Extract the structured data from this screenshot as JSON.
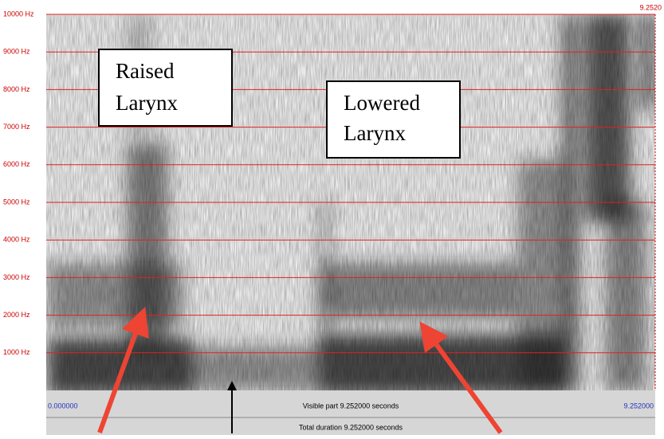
{
  "frequency_labels": [
    "10000 Hz",
    "9000 Hz",
    "8000 Hz",
    "7000 Hz",
    "6000 Hz",
    "5000 Hz",
    "4000 Hz",
    "3000 Hz",
    "2000 Hz",
    "1000 Hz"
  ],
  "top_right_time": "9.2520",
  "annotations": [
    {
      "lines": [
        "Raised",
        "Larynx"
      ]
    },
    {
      "lines": [
        "Lowered",
        "Larynx"
      ]
    }
  ],
  "time_bar": {
    "start": "0.000000",
    "visible": "Visible part 9.252000 seconds",
    "end": "9.252000",
    "total": "Total duration 9.252000 seconds"
  }
}
